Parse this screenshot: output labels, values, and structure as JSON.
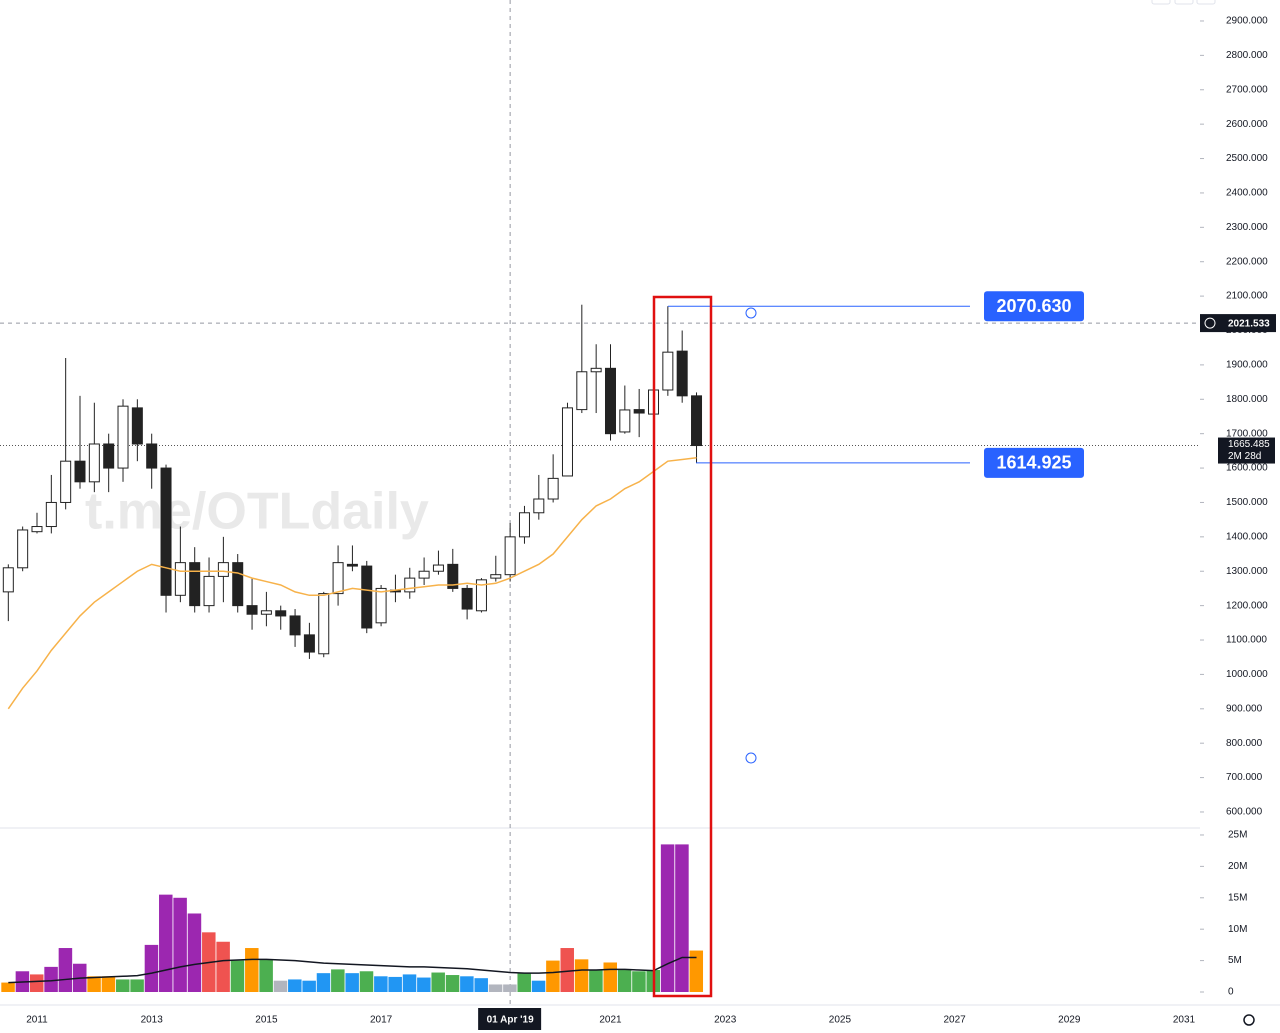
{
  "chart_data": [
    {
      "type": "candlestick",
      "watermark": "t.me/OTLdaily",
      "x": [
        2010.5,
        2010.75,
        2011,
        2011.25,
        2011.5,
        2011.75,
        2012,
        2012.25,
        2012.5,
        2012.75,
        2013,
        2013.25,
        2013.5,
        2013.75,
        2014,
        2014.25,
        2014.5,
        2014.75,
        2015,
        2015.25,
        2015.5,
        2015.75,
        2016,
        2016.25,
        2016.5,
        2016.75,
        2017,
        2017.25,
        2017.5,
        2017.75,
        2018,
        2018.25,
        2018.5,
        2018.75,
        2019,
        2019.25,
        2019.5,
        2019.75,
        2020,
        2020.25,
        2020.5,
        2020.75,
        2021,
        2021.25,
        2021.5,
        2021.75,
        2022,
        2022.25,
        2022.5
      ],
      "open": [
        1240,
        1310,
        1415,
        1430,
        1500,
        1620,
        1560,
        1670,
        1600,
        1775,
        1670,
        1600,
        1230,
        1325,
        1200,
        1285,
        1325,
        1200,
        1175,
        1185,
        1170,
        1115,
        1060,
        1235,
        1320,
        1315,
        1150,
        1245,
        1240,
        1280,
        1300,
        1320,
        1250,
        1185,
        1280,
        1290,
        1400,
        1470,
        1510,
        1577,
        1770,
        1880,
        1890,
        1705,
        1770,
        1757,
        1827,
        1940,
        1810
      ],
      "high": [
        1320,
        1430,
        1470,
        1580,
        1920,
        1810,
        1790,
        1700,
        1800,
        1800,
        1700,
        1610,
        1430,
        1370,
        1340,
        1400,
        1350,
        1280,
        1240,
        1200,
        1190,
        1150,
        1240,
        1375,
        1375,
        1330,
        1260,
        1290,
        1310,
        1340,
        1360,
        1365,
        1260,
        1280,
        1345,
        1440,
        1490,
        1580,
        1640,
        1790,
        2075,
        1960,
        1960,
        1840,
        1830,
        1900,
        2070.63,
        2000,
        1820
      ],
      "low": [
        1155,
        1300,
        1410,
        1410,
        1480,
        1540,
        1530,
        1530,
        1560,
        1620,
        1540,
        1180,
        1210,
        1180,
        1180,
        1210,
        1180,
        1130,
        1140,
        1130,
        1080,
        1045,
        1050,
        1200,
        1300,
        1120,
        1140,
        1210,
        1220,
        1260,
        1290,
        1240,
        1160,
        1180,
        1270,
        1270,
        1380,
        1450,
        1500,
        1577,
        1760,
        1760,
        1680,
        1700,
        1690,
        1690,
        1810,
        1790,
        1614.925
      ],
      "close": [
        1310,
        1420,
        1430,
        1500,
        1620,
        1560,
        1670,
        1600,
        1780,
        1670,
        1600,
        1230,
        1325,
        1200,
        1285,
        1325,
        1200,
        1175,
        1185,
        1170,
        1115,
        1065,
        1235,
        1325,
        1315,
        1135,
        1250,
        1240,
        1280,
        1300,
        1318,
        1250,
        1190,
        1275,
        1290,
        1400,
        1470,
        1510,
        1570,
        1775,
        1880,
        1890,
        1700,
        1769,
        1760,
        1827,
        1937,
        1810,
        1665.485
      ],
      "up_color": "#ffffff",
      "down_color": "#222222",
      "wick_color": "#222222",
      "ma": {
        "color": "#f7b24a",
        "values": [
          900,
          960,
          1010,
          1070,
          1120,
          1170,
          1210,
          1240,
          1270,
          1300,
          1320,
          1310,
          1300,
          1300,
          1300,
          1300,
          1295,
          1280,
          1270,
          1260,
          1240,
          1230,
          1230,
          1240,
          1250,
          1245,
          1240,
          1245,
          1250,
          1255,
          1260,
          1260,
          1265,
          1260,
          1265,
          1280,
          1300,
          1320,
          1350,
          1400,
          1450,
          1490,
          1510,
          1540,
          1560,
          1590,
          1620,
          1625,
          1630
        ]
      },
      "xlim": [
        2010.355,
        2031.279
      ],
      "xticks": [
        2011,
        2013,
        2015,
        2017,
        2019,
        2021,
        2023,
        2025,
        2027,
        2029,
        2031
      ],
      "ylim": [
        553.4,
        2961
      ],
      "yticks": [
        {
          "value": 600,
          "label": "600.000"
        },
        {
          "value": 700,
          "label": "700.000"
        },
        {
          "value": 800,
          "label": "800.000"
        },
        {
          "value": 900,
          "label": "900.000"
        },
        {
          "value": 1000,
          "label": "1000.000"
        },
        {
          "value": 1100,
          "label": "1100.000"
        },
        {
          "value": 1200,
          "label": "1200.000"
        },
        {
          "value": 1300,
          "label": "1300.000"
        },
        {
          "value": 1400,
          "label": "1400.000"
        },
        {
          "value": 1500,
          "label": "1500.000"
        },
        {
          "value": 1600,
          "label": "1600.000"
        },
        {
          "value": 1700,
          "label": "1700.000"
        },
        {
          "value": 1800,
          "label": "1800.000"
        },
        {
          "value": 1900,
          "label": "1900.000"
        },
        {
          "value": 2000,
          "label": "2000.000"
        },
        {
          "value": 2100,
          "label": "2100.000"
        },
        {
          "value": 2200,
          "label": "2200.000"
        },
        {
          "value": 2300,
          "label": "2300.000"
        },
        {
          "value": 2400,
          "label": "2400.000"
        },
        {
          "value": 2500,
          "label": "2500.000"
        },
        {
          "value": 2600,
          "label": "2600.000"
        },
        {
          "value": 2700,
          "label": "2700.000"
        },
        {
          "value": 2800,
          "label": "2800.000"
        },
        {
          "value": 2900,
          "label": "2900.000"
        }
      ],
      "levels": [
        {
          "value": 2070.63,
          "label": "2070.630"
        },
        {
          "value": 1614.925,
          "label": "1614.925"
        }
      ],
      "level_color": "#2962ff",
      "last_price": {
        "value": 1665.485,
        "label": "1665.485",
        "countdown": "2M 28d"
      },
      "crosshair": {
        "x": {
          "value": 2019.25,
          "label": "01 Apr '19"
        },
        "y": {
          "value": 2021.533,
          "label": "2021.533"
        }
      }
    },
    {
      "type": "bar",
      "x": [
        2010.5,
        2010.75,
        2011,
        2011.25,
        2011.5,
        2011.75,
        2012,
        2012.25,
        2012.5,
        2012.75,
        2013,
        2013.25,
        2013.5,
        2013.75,
        2014,
        2014.25,
        2014.5,
        2014.75,
        2015,
        2015.25,
        2015.5,
        2015.75,
        2016,
        2016.25,
        2016.5,
        2016.75,
        2017,
        2017.25,
        2017.5,
        2017.75,
        2018,
        2018.25,
        2018.5,
        2018.75,
        2019,
        2019.25,
        2019.5,
        2019.75,
        2020,
        2020.25,
        2020.5,
        2020.75,
        2021,
        2021.25,
        2021.5,
        2021.75,
        2022,
        2022.25,
        2022.5
      ],
      "values": [
        1500000,
        3300000,
        2800000,
        4000000,
        7000000,
        4500000,
        2500000,
        2500000,
        2000000,
        2000000,
        7500000,
        15500000,
        15000000,
        12500000,
        9500000,
        8000000,
        5000000,
        7000000,
        5200000,
        1800000,
        2000000,
        1800000,
        3000000,
        3600000,
        3000000,
        3300000,
        2500000,
        2400000,
        2800000,
        2300000,
        3100000,
        2700000,
        2500000,
        2200000,
        1200000,
        1200000,
        3000000,
        1800000,
        5000000,
        7000000,
        5200000,
        3500000,
        4700000,
        3500000,
        3300000,
        3500000,
        23500000,
        23500000,
        6600000
      ],
      "colors": [
        "#ff9800",
        "#9c27b0",
        "#ef5350",
        "#9c27b0",
        "#9c27b0",
        "#9c27b0",
        "#ff9800",
        "#ff9800",
        "#4caf50",
        "#4caf50",
        "#9c27b0",
        "#9c27b0",
        "#9c27b0",
        "#9c27b0",
        "#ef5350",
        "#ef5350",
        "#4caf50",
        "#ff9800",
        "#4caf50",
        "#b2b5be",
        "#2196f3",
        "#2196f3",
        "#2196f3",
        "#4caf50",
        "#2196f3",
        "#4caf50",
        "#2196f3",
        "#2196f3",
        "#2196f3",
        "#2196f3",
        "#4caf50",
        "#4caf50",
        "#2196f3",
        "#2196f3",
        "#b2b5be",
        "#b2b5be",
        "#4caf50",
        "#2196f3",
        "#ff9800",
        "#ef5350",
        "#ff9800",
        "#4caf50",
        "#ff9800",
        "#4caf50",
        "#4caf50",
        "#4caf50",
        "#9c27b0",
        "#9c27b0",
        "#ff9800"
      ],
      "ma": {
        "color": "#131722",
        "values": [
          1500000,
          1600000,
          1700000,
          1800000,
          2000000,
          2200000,
          2300000,
          2400000,
          2500000,
          2600000,
          3000000,
          3500000,
          4000000,
          4400000,
          4700000,
          5000000,
          5100000,
          5200000,
          5200000,
          5100000,
          5000000,
          4800000,
          4600000,
          4500000,
          4400000,
          4300000,
          4200000,
          4100000,
          4000000,
          4000000,
          3900000,
          3800000,
          3700000,
          3500000,
          3300000,
          3100000,
          3000000,
          3000000,
          3100000,
          3300000,
          3500000,
          3500000,
          3600000,
          3600000,
          3500000,
          3400000,
          4500000,
          5500000,
          5500000
        ]
      },
      "ylim": [
        -2070000,
        26110000
      ],
      "yticks": [
        0,
        {
          "value": 5000000,
          "label": "5M"
        },
        {
          "value": 10000000,
          "label": "10M"
        },
        {
          "value": 15000000,
          "label": "15M"
        },
        {
          "value": 20000000,
          "label": "20M"
        },
        {
          "value": 25000000,
          "label": "25M"
        }
      ]
    }
  ]
}
